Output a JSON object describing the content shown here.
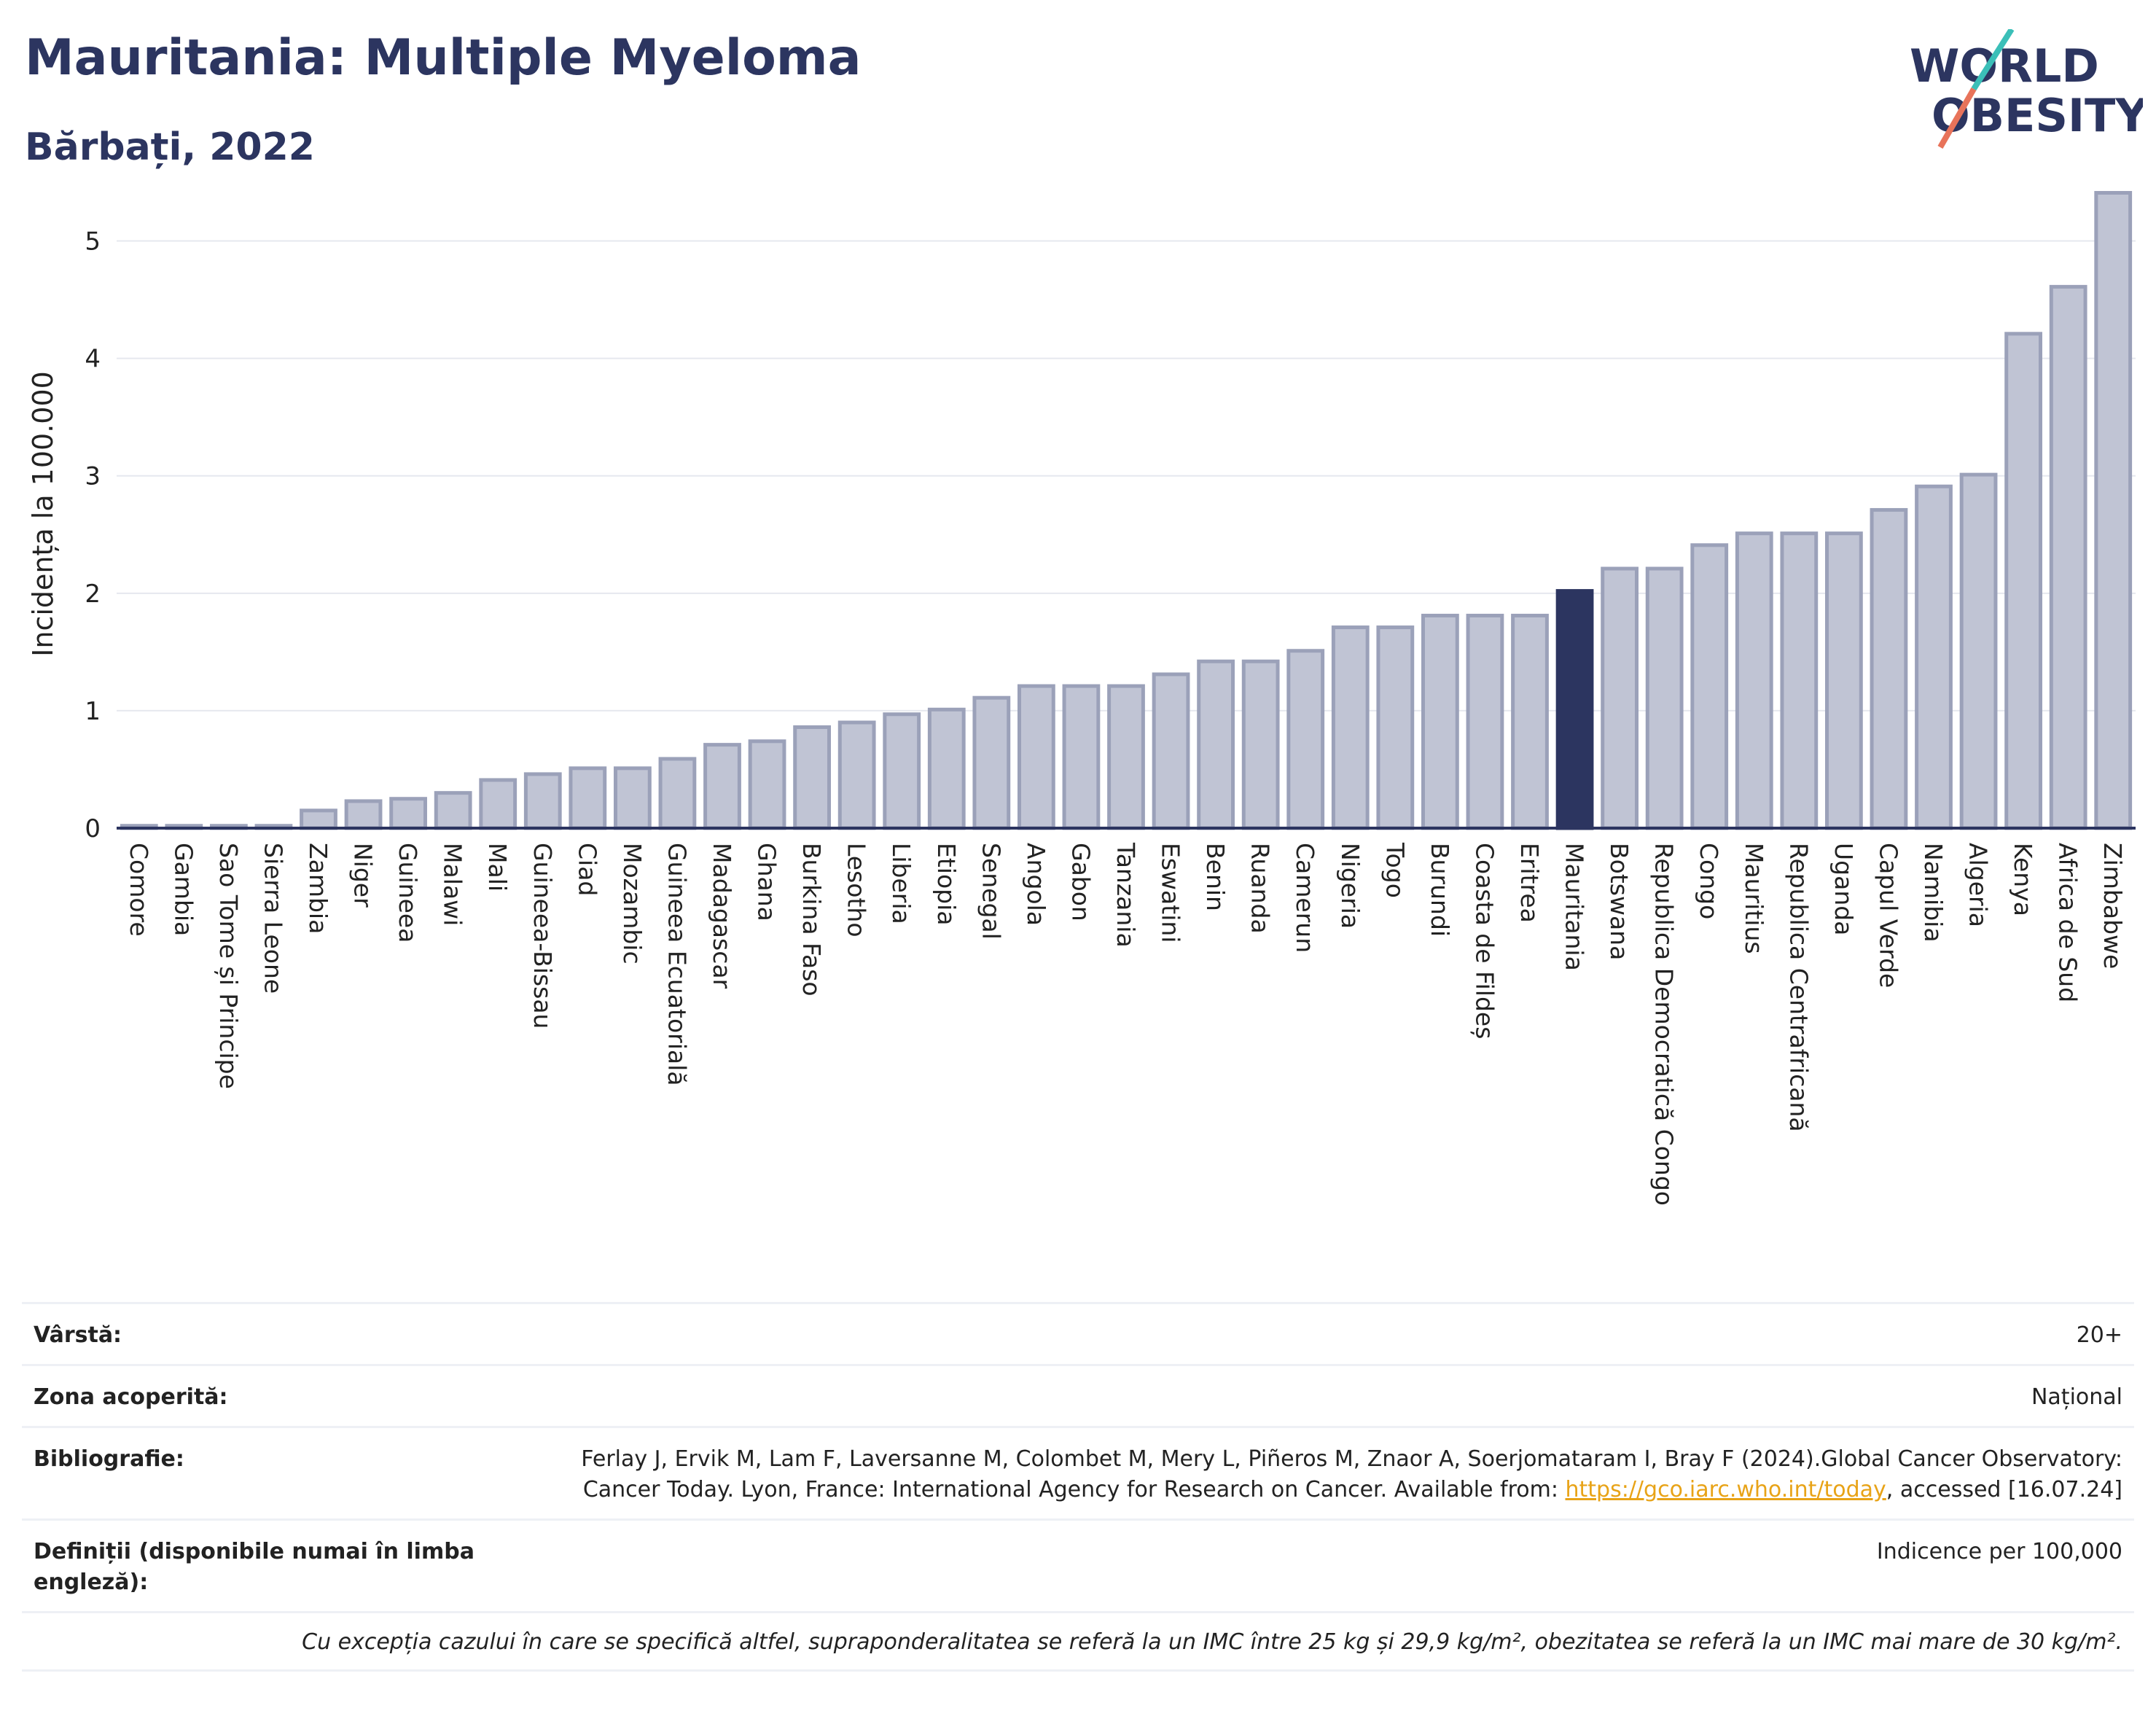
{
  "header": {
    "title": "Mauritania: Multiple Myeloma",
    "subtitle": "Bărbați, 2022"
  },
  "logo": {
    "line1": "WORLD",
    "line2": "OBESITY",
    "colors": {
      "text": "#2c3560",
      "slash_teal": "#3bbfb8",
      "slash_red": "#e8735a"
    }
  },
  "chart_data": {
    "type": "bar",
    "ylabel": "Incidența la 100.000",
    "xlabel": "",
    "ylim": [
      0,
      5.5
    ],
    "yticks": [
      0,
      1,
      2,
      3,
      4,
      5
    ],
    "grid": true,
    "highlight": "Mauritania",
    "colors": {
      "bar": "#c0c4d4",
      "bar_edge": "#9ba1b9",
      "highlight": "#2c3560",
      "grid": "#e6e8ef"
    },
    "categories": [
      "Comore",
      "Gambia",
      "Sao Tome și Principe",
      "Sierra Leone",
      "Zambia",
      "Niger",
      "Guineea",
      "Malawi",
      "Mali",
      "Guineea-Bissau",
      "Ciad",
      "Mozambic",
      "Guineea Ecuatorială",
      "Madagascar",
      "Ghana",
      "Burkina Faso",
      "Lesotho",
      "Liberia",
      "Etiopia",
      "Senegal",
      "Angola",
      "Gabon",
      "Tanzania",
      "Eswatini",
      "Benin",
      "Ruanda",
      "Camerun",
      "Nigeria",
      "Togo",
      "Burundi",
      "Coasta de Fildeș",
      "Eritrea",
      "Mauritania",
      "Botswana",
      "Republica Democratică Congo",
      "Congo",
      "Mauritius",
      "Republica Centrafricană",
      "Uganda",
      "Capul Verde",
      "Namibia",
      "Algeria",
      "Kenya",
      "Africa de Sud",
      "Zimbabwe"
    ],
    "values": [
      0.02,
      0.02,
      0.02,
      0.02,
      0.15,
      0.23,
      0.25,
      0.3,
      0.41,
      0.46,
      0.51,
      0.51,
      0.59,
      0.71,
      0.74,
      0.86,
      0.9,
      0.97,
      1.01,
      1.11,
      1.21,
      1.21,
      1.21,
      1.31,
      1.42,
      1.42,
      1.51,
      1.71,
      1.71,
      1.81,
      1.81,
      1.81,
      2.02,
      2.21,
      2.21,
      2.41,
      2.51,
      2.51,
      2.51,
      2.71,
      2.91,
      3.01,
      4.21,
      4.61,
      5.41
    ]
  },
  "meta": {
    "age_label": "Vârstă:",
    "age_value": "20+",
    "coverage_label": "Zona acoperită:",
    "coverage_value": "Național",
    "biblio_label": "Bibliografie:",
    "biblio_text_1": "Ferlay J, Ervik M, Lam F, Laversanne M, Colombet M, Mery L, Piñeros M, Znaor A, Soerjomataram I, Bray F (2024).Global Cancer Observatory: Cancer Today. Lyon, France: International Agency for Research on Cancer. Available from: ",
    "biblio_link": "https://gco.iarc.who.int/today",
    "biblio_text_2": ", accessed [16.07.24]",
    "definitions_label": "Definiții (disponibile numai în limba engleză):",
    "definitions_value": "Indicence per 100,000",
    "note": "Cu excepția cazului în care se specifică altfel, supraponderalitatea se referă la un IMC între 25 kg și 29,9 kg/m², obezitatea se referă la un IMC mai mare de 30 kg/m²."
  }
}
